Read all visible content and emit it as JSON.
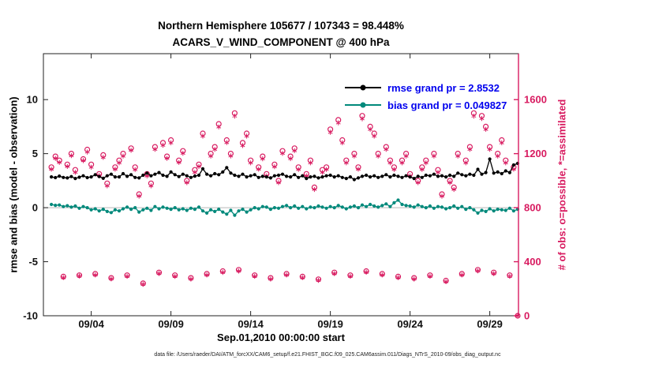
{
  "title": {
    "line1": "Northern Hemisphere 105677 / 107343 = 98.448%",
    "line2": "ACARS_V_WIND_COMPONENT @ 400 hPa"
  },
  "legend": [
    {
      "label": "rmse grand pr = 2.8532"
    },
    {
      "label": "bias grand pr = 0.049827"
    }
  ],
  "axes": {
    "left": {
      "label": "rmse and bias (model - observation)",
      "ticks": [
        -10,
        -5,
        0,
        5,
        10
      ],
      "range": [
        -10,
        14.25
      ]
    },
    "right": {
      "label": "# of obs: o=possible, *=assimilated",
      "ticks": [
        0,
        400,
        800,
        1200,
        1600
      ],
      "range": [
        0,
        1940
      ],
      "color": "#D81B60"
    },
    "x": {
      "label": "Sep.01,2010 00:00:00 start",
      "tick_labels": [
        "09/04",
        "09/09",
        "09/14",
        "09/19",
        "09/24",
        "09/29"
      ],
      "tick_days": [
        3,
        8,
        13,
        18,
        23,
        28
      ],
      "range_days": [
        0,
        29.8
      ]
    }
  },
  "caption": "data file: /Users/raeder/DAI/ATM_forcXX/CAM6_setup/f.e21.FHIST_BGC.f09_025.CAM6assim.011/Diags_NTrS_2010-09/obs_diag_output.nc",
  "colors": {
    "rmse": "#000000",
    "bias": "#00897B",
    "obs": "#D81B60",
    "legend_text": "#0000EE",
    "zero_line": "#b9b9b9",
    "axis": "#222222"
  },
  "chart_data": {
    "type": "line",
    "title": "Northern Hemisphere 105677 / 107343 = 98.448% — ACARS_V_WIND_COMPONENT @ 400 hPa",
    "xlabel": "Sep.01,2010 00:00:00 start",
    "ylabel_left": "rmse and bias (model - observation)",
    "ylabel_right": "# of obs: o=possible, *=assimilated",
    "ylim_left": [
      -10,
      14.25
    ],
    "ylim_right": [
      0,
      1940
    ],
    "legend_position": "top-right-inside",
    "grid": false,
    "x": {
      "start_day": 0.5,
      "step_days": 0.25,
      "count": 118
    },
    "series": [
      {
        "name": "rmse",
        "type": "line",
        "marker": "dot",
        "color": "#000000",
        "axis": "left",
        "grand_value": 2.8532,
        "values": [
          2.85,
          2.78,
          2.92,
          2.8,
          2.75,
          2.88,
          2.7,
          2.82,
          2.95,
          2.78,
          2.85,
          3.05,
          2.88,
          2.72,
          2.95,
          3.1,
          2.85,
          2.85,
          3.15,
          2.9,
          3.05,
          2.8,
          2.75,
          3.0,
          3.2,
          2.95,
          3.1,
          3.25,
          3.0,
          2.9,
          3.3,
          3.05,
          2.88,
          3.1,
          2.95,
          2.8,
          2.92,
          3.0,
          3.6,
          3.1,
          2.95,
          3.15,
          3.05,
          3.3,
          3.7,
          3.2,
          3.0,
          2.9,
          3.1,
          2.85,
          2.95,
          3.05,
          2.8,
          2.9,
          2.85,
          2.75,
          2.95,
          3.0,
          3.1,
          2.9,
          2.85,
          3.05,
          2.8,
          2.95,
          2.7,
          2.85,
          2.9,
          2.75,
          2.85,
          2.95,
          3.0,
          2.85,
          2.95,
          2.8,
          2.7,
          2.85,
          2.6,
          2.75,
          2.9,
          3.0,
          2.85,
          2.95,
          2.8,
          2.9,
          3.05,
          2.85,
          3.0,
          2.9,
          2.8,
          2.95,
          2.85,
          2.7,
          2.9,
          2.8,
          3.0,
          2.95,
          3.1,
          2.9,
          2.95,
          2.85,
          3.0,
          2.9,
          3.2,
          3.05,
          2.95,
          3.1,
          3.0,
          3.55,
          3.1,
          3.25,
          4.5,
          3.2,
          3.3,
          3.15,
          3.4,
          3.25,
          3.95,
          4.1
        ]
      },
      {
        "name": "bias",
        "type": "line",
        "marker": "dot",
        "color": "#00897B",
        "axis": "left",
        "grand_value": 0.049827,
        "values": [
          0.3,
          0.22,
          0.25,
          0.1,
          0.18,
          0.05,
          0.15,
          -0.05,
          0.1,
          0.0,
          -0.2,
          -0.1,
          -0.3,
          -0.15,
          -0.35,
          -0.45,
          -0.2,
          -0.3,
          -0.1,
          0.05,
          -0.15,
          0.0,
          -0.4,
          -0.2,
          -0.05,
          -0.25,
          0.1,
          -0.1,
          0.05,
          -0.05,
          -0.15,
          0.0,
          -0.2,
          -0.1,
          -0.25,
          -0.05,
          -0.15,
          0.05,
          -0.3,
          -0.5,
          -0.2,
          -0.35,
          -0.15,
          -0.4,
          -0.6,
          -0.25,
          -0.7,
          -0.3,
          -0.15,
          -0.4,
          -0.2,
          0.0,
          -0.1,
          0.1,
          0.05,
          -0.15,
          0.0,
          -0.05,
          0.1,
          0.2,
          0.0,
          0.15,
          -0.05,
          0.1,
          -0.1,
          0.05,
          0.0,
          0.15,
          0.05,
          -0.05,
          0.1,
          0.0,
          0.2,
          0.05,
          -0.1,
          0.05,
          0.15,
          0.0,
          0.25,
          0.1,
          0.3,
          0.15,
          0.05,
          0.2,
          0.35,
          0.1,
          0.45,
          0.7,
          0.3,
          0.2,
          0.15,
          0.05,
          0.25,
          0.1,
          0.0,
          0.15,
          -0.05,
          0.1,
          0.05,
          -0.1,
          0.0,
          0.15,
          -0.05,
          0.1,
          -0.15,
          0.0,
          -0.2,
          -0.5,
          -0.25,
          -0.35,
          -0.1,
          -0.3,
          -0.15,
          -0.2,
          -0.25,
          -0.05,
          -0.3,
          -0.15
        ]
      },
      {
        "name": "possible_obs",
        "type": "scatter",
        "marker": "circle",
        "color": "#D81B60",
        "axis": "right",
        "values": [
          1100,
          1180,
          1150,
          290,
          1120,
          1200,
          1080,
          300,
          1160,
          1230,
          1120,
          310,
          1050,
          1190,
          980,
          280,
          1100,
          1150,
          1200,
          300,
          1240,
          1100,
          900,
          240,
          1050,
          980,
          1250,
          320,
          1280,
          1180,
          1300,
          300,
          1150,
          1220,
          1000,
          280,
          1080,
          1120,
          1350,
          310,
          1200,
          1250,
          1420,
          330,
          1300,
          1200,
          1500,
          340,
          1280,
          1350,
          1150,
          300,
          1100,
          1180,
          1050,
          280,
          1120,
          1000,
          1220,
          310,
          1180,
          1240,
          1100,
          290,
          1050,
          1150,
          950,
          270,
          1080,
          1100,
          1380,
          320,
          1450,
          1300,
          1150,
          300,
          1200,
          1100,
          1480,
          330,
          1400,
          1350,
          1200,
          310,
          1250,
          1150,
          1100,
          290,
          1150,
          1200,
          1050,
          280,
          1000,
          1100,
          1150,
          300,
          1200,
          1080,
          900,
          260,
          1000,
          950,
          1200,
          310,
          1150,
          1250,
          1500,
          340,
          1480,
          1400,
          1250,
          320,
          1200,
          1300,
          1150,
          300,
          1100,
          0
        ]
      },
      {
        "name": "assimilated_obs",
        "type": "scatter",
        "marker": "asterisk",
        "color": "#D81B60",
        "axis": "right",
        "values": [
          1085,
          1165,
          1135,
          282,
          1105,
          1185,
          1062,
          294,
          1148,
          1212,
          1100,
          302,
          1038,
          1172,
          962,
          273,
          1085,
          1132,
          1182,
          292,
          1225,
          1082,
          885,
          233,
          1035,
          962,
          1232,
          313,
          1262,
          1165,
          1280,
          291,
          1135,
          1203,
          985,
          272,
          1062,
          1105,
          1330,
          302,
          1182,
          1232,
          1398,
          321,
          1282,
          1183,
          1478,
          331,
          1260,
          1330,
          1132,
          292,
          1085,
          1162,
          1035,
          272,
          1103,
          985,
          1202,
          302,
          1163,
          1222,
          1083,
          282,
          1035,
          1132,
          935,
          262,
          1062,
          1083,
          1358,
          312,
          1428,
          1280,
          1132,
          292,
          1182,
          1085,
          1458,
          322,
          1380,
          1330,
          1182,
          302,
          1232,
          1132,
          1083,
          282,
          1132,
          1182,
          1035,
          272,
          985,
          1083,
          1132,
          292,
          1182,
          1062,
          885,
          252,
          985,
          935,
          1182,
          302,
          1132,
          1232,
          1478,
          332,
          1460,
          1380,
          1232,
          312,
          1182,
          1280,
          1132,
          292,
          1085,
          0
        ]
      }
    ]
  }
}
